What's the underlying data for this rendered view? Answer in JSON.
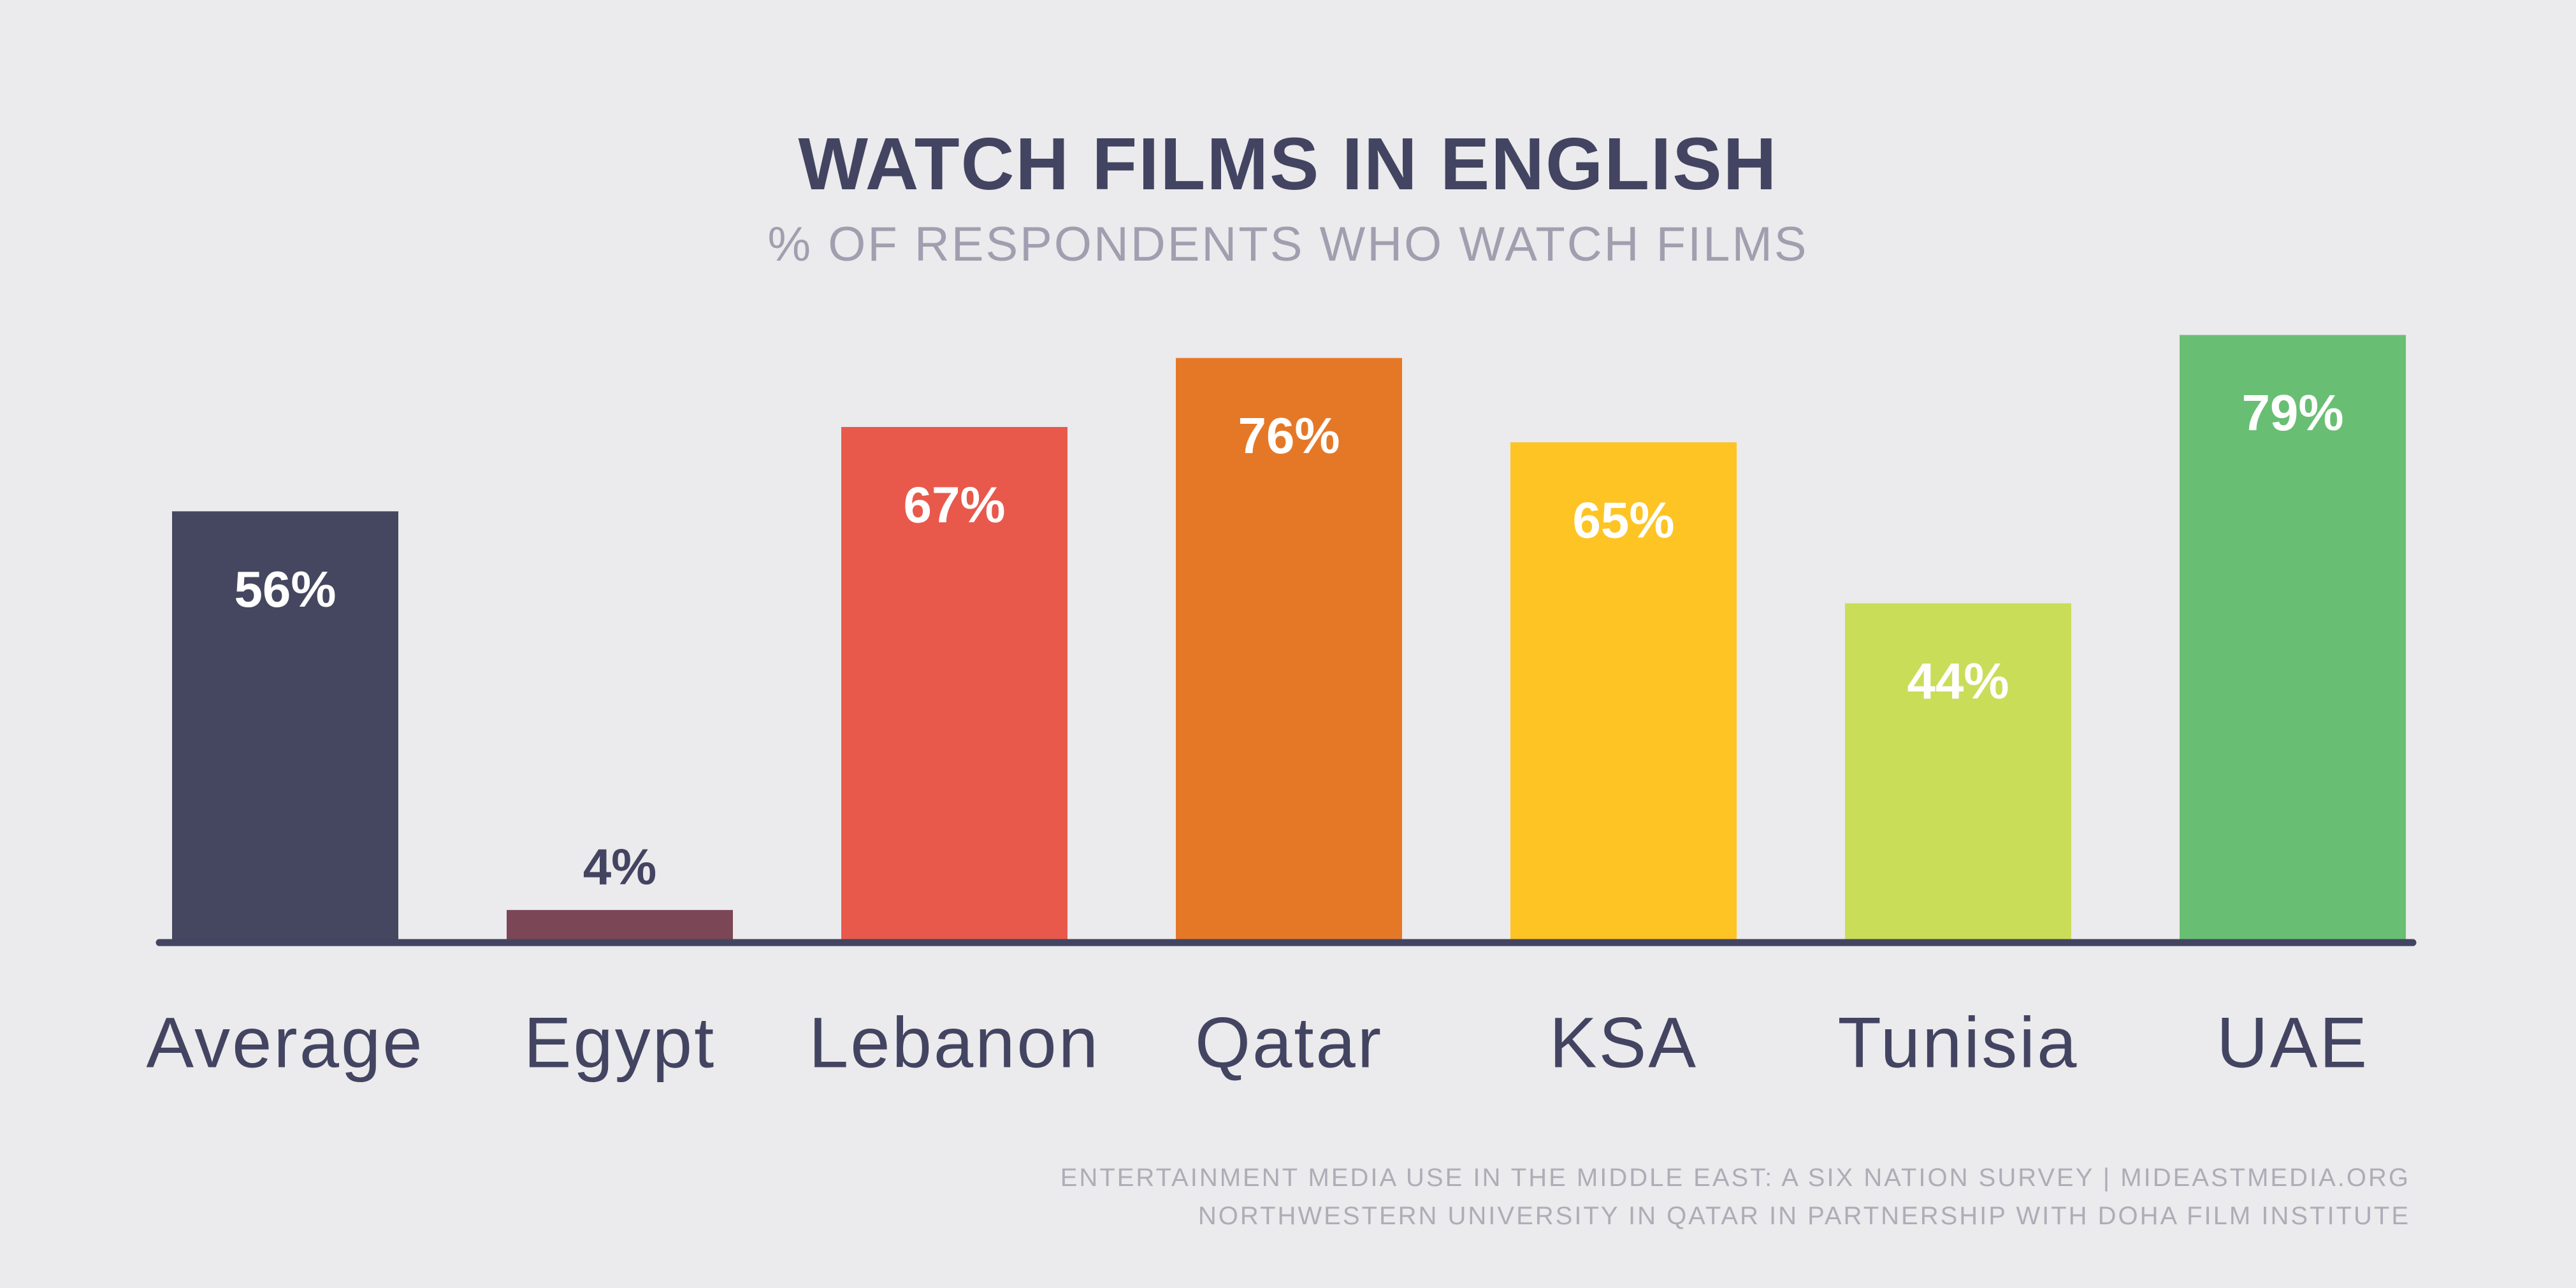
{
  "chart_data": {
    "type": "bar",
    "title": "WATCH FILMS IN ENGLISH",
    "subtitle": "% OF RESPONDENTS WHO WATCH FILMS",
    "xlabel": "",
    "ylabel": "",
    "ylim": [
      0,
      100
    ],
    "grid": false,
    "categories": [
      "Average",
      "Egypt",
      "Lebanon",
      "Qatar",
      "KSA",
      "Tunisia",
      "UAE"
    ],
    "values": [
      56,
      4,
      67,
      76,
      65,
      44,
      79
    ],
    "data_labels": [
      "56%",
      "4%",
      "67%",
      "76%",
      "65%",
      "44%",
      "79%"
    ],
    "colors": [
      "#45465f",
      "#7b4655",
      "#e8594c",
      "#e57827",
      "#fdc424",
      "#cadd58",
      "#68bf73"
    ],
    "axis_color": "#434461",
    "inside_label_color": "#ffffff",
    "outside_label_color": "#434461"
  },
  "footer": {
    "line1": "ENTERTAINMENT MEDIA USE IN THE MIDDLE EAST: A SIX NATION SURVEY | MIDEASTMEDIA.ORG",
    "line2": "NORTHWESTERN UNIVERSITY IN QATAR IN PARTNERSHIP WITH DOHA FILM INSTITUTE"
  }
}
